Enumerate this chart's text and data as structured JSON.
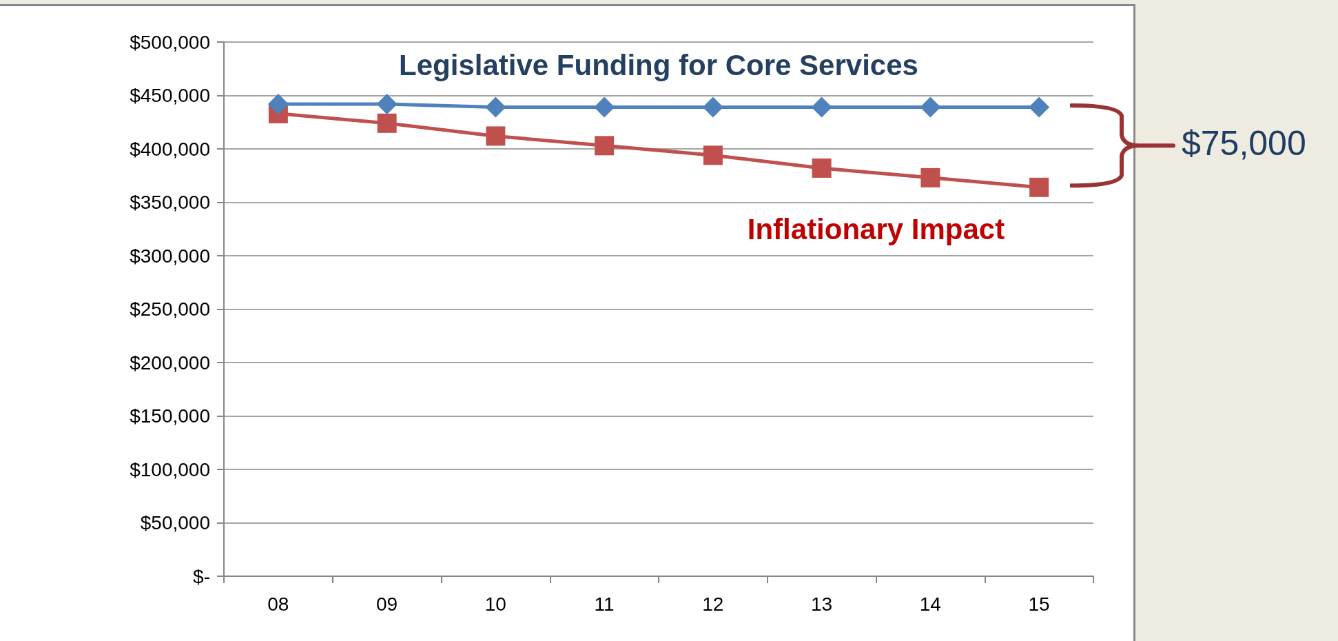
{
  "chart_data": {
    "type": "line",
    "categories": [
      "08",
      "09",
      "10",
      "11",
      "12",
      "13",
      "14",
      "15"
    ],
    "series": [
      {
        "name": "Legislative Funding for Core Services",
        "color": "#4f81bd",
        "marker": "diamond",
        "values": [
          442000,
          442000,
          439000,
          439000,
          439000,
          439000,
          439000,
          439000
        ]
      },
      {
        "name": "Inflationary Impact",
        "color": "#c0504d",
        "marker": "square",
        "values": [
          433000,
          424000,
          412000,
          403000,
          394000,
          382000,
          373000,
          364000
        ]
      }
    ],
    "ylim": [
      0,
      500000
    ],
    "yticks": [
      {
        "value": 0,
        "label": "$-"
      },
      {
        "value": 50000,
        "label": "$50,000"
      },
      {
        "value": 100000,
        "label": "$100,000"
      },
      {
        "value": 150000,
        "label": "$150,000"
      },
      {
        "value": 200000,
        "label": "$200,000"
      },
      {
        "value": 250000,
        "label": "$250,000"
      },
      {
        "value": 300000,
        "label": "$300,000"
      },
      {
        "value": 350000,
        "label": "$350,000"
      },
      {
        "value": 400000,
        "label": "$400,000"
      },
      {
        "value": 450000,
        "label": "$450,000"
      },
      {
        "value": 500000,
        "label": "$500,000"
      }
    ],
    "grid": "y",
    "legend": false,
    "line_style": "solid",
    "annotations": [
      "$75,000"
    ]
  }
}
